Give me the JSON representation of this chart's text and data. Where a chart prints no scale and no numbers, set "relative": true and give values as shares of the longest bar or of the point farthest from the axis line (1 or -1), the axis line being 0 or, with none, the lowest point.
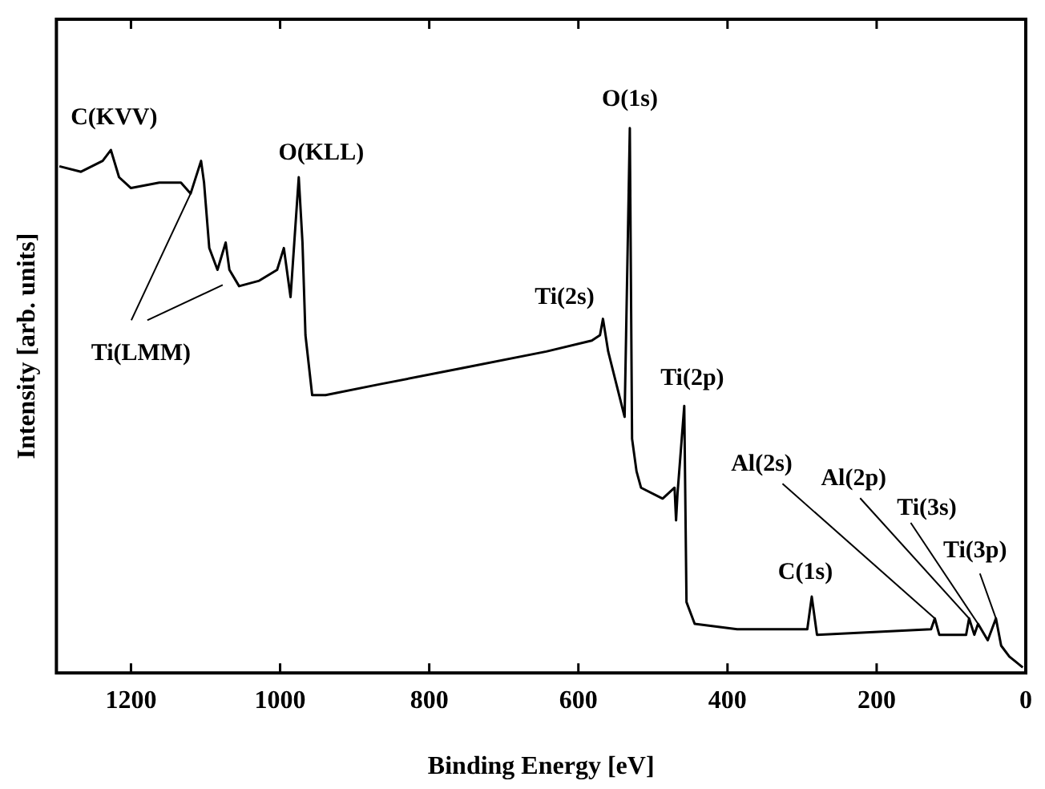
{
  "chart_data": {
    "type": "line",
    "relative": true,
    "xlabel": "Binding Energy [eV]",
    "ylabel": "Intensity [arb. units]",
    "xlim": [
      1300,
      0
    ],
    "xticks": [
      1200,
      1000,
      800,
      600,
      400,
      200,
      0
    ],
    "grid": false,
    "legend": false,
    "marker": "none",
    "line_style": "solid",
    "x": [
      1296,
      1267,
      1238,
      1227,
      1216,
      1200,
      1162,
      1133,
      1120,
      1106,
      1102,
      1095,
      1084,
      1073,
      1068,
      1055,
      1028,
      1004,
      995,
      986,
      981,
      975,
      970,
      966,
      957,
      939,
      866,
      754,
      643,
      582,
      571,
      567,
      560,
      538,
      536,
      531,
      528,
      522,
      516,
      487,
      471,
      469,
      467,
      458,
      455,
      444,
      387,
      293,
      287,
      280,
      127,
      122,
      116,
      80,
      76,
      69,
      64,
      51,
      40,
      33,
      22,
      4
    ],
    "series": [
      {
        "color": "#000000",
        "values": [
          0.93,
          0.92,
          0.94,
          0.96,
          0.91,
          0.89,
          0.9,
          0.9,
          0.88,
          0.94,
          0.9,
          0.78,
          0.74,
          0.79,
          0.74,
          0.71,
          0.72,
          0.74,
          0.78,
          0.69,
          0.79,
          0.91,
          0.79,
          0.62,
          0.51,
          0.51,
          0.53,
          0.56,
          0.59,
          0.61,
          0.62,
          0.65,
          0.59,
          0.47,
          0.62,
          1,
          0.43,
          0.37,
          0.34,
          0.32,
          0.34,
          0.28,
          0.33,
          0.49,
          0.13,
          0.09,
          0.08,
          0.08,
          0.14,
          0.07,
          0.08,
          0.1,
          0.07,
          0.07,
          0.1,
          0.07,
          0.09,
          0.06,
          0.1,
          0.05,
          0.03,
          0.01
        ]
      }
    ],
    "annotations": [
      {
        "text": "C(KVV)",
        "x": 1227,
        "y": 0.96
      },
      {
        "text": "Ti(LMM)",
        "x": 1120,
        "y": 0.88
      },
      {
        "text": "O(KLL)",
        "x": 975,
        "y": 0.91
      },
      {
        "text": "Ti(2s)",
        "x": 567,
        "y": 0.65
      },
      {
        "text": "O(1s)",
        "x": 531,
        "y": 1
      },
      {
        "text": "Ti(2p)",
        "x": 458,
        "y": 0.49
      },
      {
        "text": "C(1s)",
        "x": 287,
        "y": 0.14
      },
      {
        "text": "Al(2s)",
        "x": 122,
        "y": 0.1
      },
      {
        "text": "Al(2p)",
        "x": 76,
        "y": 0.1
      },
      {
        "text": "Ti(3s)",
        "x": 64,
        "y": 0.09
      },
      {
        "text": "Ti(3p)",
        "x": 40,
        "y": 0.1
      }
    ]
  }
}
